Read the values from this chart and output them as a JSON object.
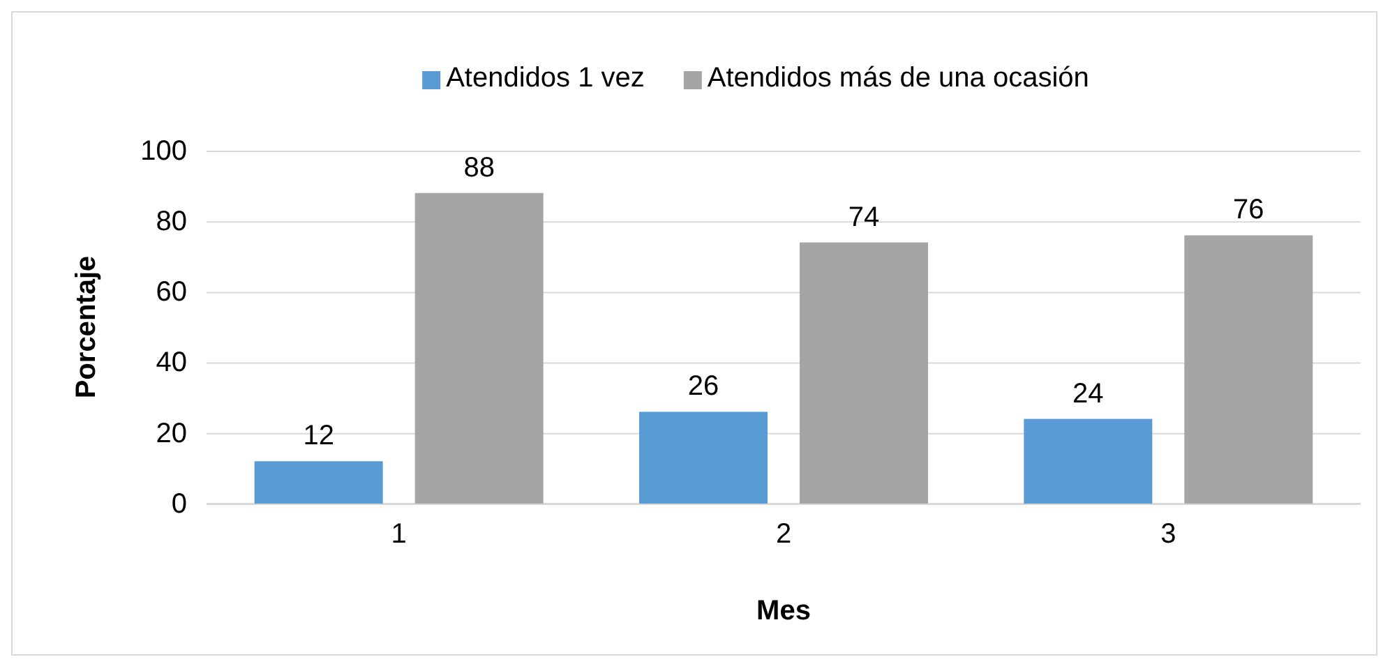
{
  "chart_data": {
    "type": "bar",
    "xlabel": "Mes",
    "ylabel": "Porcentaje",
    "categories": [
      "1",
      "2",
      "3"
    ],
    "series": [
      {
        "name": "Atendidos 1 vez",
        "color": "#5b9bd5",
        "values": [
          12,
          26,
          24
        ]
      },
      {
        "name": "Atendidos más de una ocasión",
        "color": "#a5a5a5",
        "values": [
          88,
          74,
          76
        ]
      }
    ],
    "ylim": [
      0,
      100
    ],
    "yticks": [
      0,
      20,
      40,
      60,
      80,
      100
    ],
    "grid": "y",
    "legend": "top",
    "data_labels": true
  }
}
